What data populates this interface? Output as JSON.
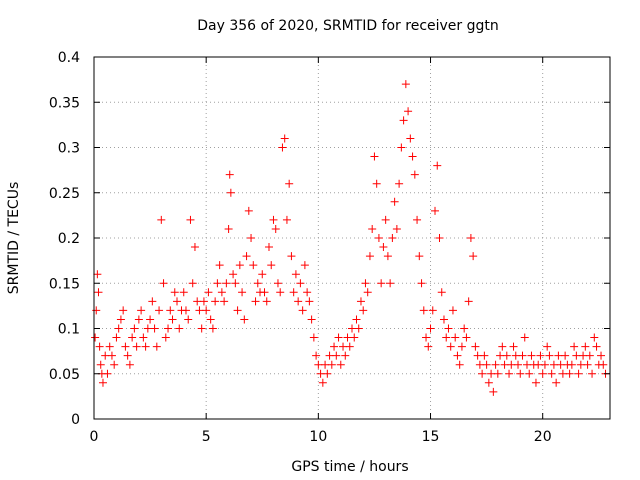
{
  "chart_data": {
    "type": "scatter",
    "title": "Day 356 of 2020, SRMTID for receiver ggtn",
    "xlabel": "GPS time / hours",
    "ylabel": "SRMTID / TECUs",
    "xlim": [
      0,
      23
    ],
    "ylim": [
      0,
      0.4
    ],
    "xticks": [
      0,
      5,
      10,
      15,
      20
    ],
    "yticks": [
      0,
      0.05,
      0.1,
      0.15,
      0.2,
      0.25,
      0.3,
      0.35,
      0.4
    ],
    "xtick_labels": [
      "0",
      "5",
      "10",
      "15",
      "20"
    ],
    "ytick_labels": [
      "0",
      "0.05",
      "0.1",
      "0.15",
      "0.2",
      "0.25",
      "0.3",
      "0.35",
      "0.4"
    ],
    "grid": true,
    "marker": "plus",
    "color": "#ff0000",
    "series": [
      {
        "name": "SRMTID",
        "points": [
          [
            0.05,
            0.09
          ],
          [
            0.1,
            0.12
          ],
          [
            0.15,
            0.16
          ],
          [
            0.2,
            0.14
          ],
          [
            0.25,
            0.08
          ],
          [
            0.3,
            0.06
          ],
          [
            0.35,
            0.05
          ],
          [
            0.4,
            0.04
          ],
          [
            0.5,
            0.07
          ],
          [
            0.6,
            0.05
          ],
          [
            0.7,
            0.08
          ],
          [
            0.8,
            0.07
          ],
          [
            0.9,
            0.06
          ],
          [
            1.0,
            0.09
          ],
          [
            1.1,
            0.1
          ],
          [
            1.2,
            0.11
          ],
          [
            1.3,
            0.12
          ],
          [
            1.4,
            0.08
          ],
          [
            1.5,
            0.07
          ],
          [
            1.6,
            0.06
          ],
          [
            1.7,
            0.09
          ],
          [
            1.8,
            0.1
          ],
          [
            1.9,
            0.08
          ],
          [
            2.0,
            0.11
          ],
          [
            2.1,
            0.12
          ],
          [
            2.2,
            0.09
          ],
          [
            2.3,
            0.08
          ],
          [
            2.4,
            0.1
          ],
          [
            2.5,
            0.11
          ],
          [
            2.6,
            0.13
          ],
          [
            2.7,
            0.1
          ],
          [
            2.8,
            0.08
          ],
          [
            2.9,
            0.12
          ],
          [
            3.0,
            0.22
          ],
          [
            3.1,
            0.15
          ],
          [
            3.2,
            0.09
          ],
          [
            3.3,
            0.1
          ],
          [
            3.4,
            0.12
          ],
          [
            3.5,
            0.11
          ],
          [
            3.6,
            0.14
          ],
          [
            3.7,
            0.13
          ],
          [
            3.8,
            0.1
          ],
          [
            3.9,
            0.12
          ],
          [
            4.0,
            0.14
          ],
          [
            4.1,
            0.12
          ],
          [
            4.2,
            0.11
          ],
          [
            4.3,
            0.22
          ],
          [
            4.4,
            0.15
          ],
          [
            4.5,
            0.19
          ],
          [
            4.6,
            0.13
          ],
          [
            4.7,
            0.12
          ],
          [
            4.8,
            0.1
          ],
          [
            4.9,
            0.13
          ],
          [
            5.0,
            0.12
          ],
          [
            5.1,
            0.14
          ],
          [
            5.2,
            0.11
          ],
          [
            5.3,
            0.1
          ],
          [
            5.4,
            0.13
          ],
          [
            5.5,
            0.15
          ],
          [
            5.6,
            0.17
          ],
          [
            5.7,
            0.14
          ],
          [
            5.8,
            0.13
          ],
          [
            5.9,
            0.15
          ],
          [
            6.0,
            0.21
          ],
          [
            6.05,
            0.27
          ],
          [
            6.1,
            0.25
          ],
          [
            6.2,
            0.16
          ],
          [
            6.3,
            0.15
          ],
          [
            6.4,
            0.12
          ],
          [
            6.5,
            0.17
          ],
          [
            6.6,
            0.14
          ],
          [
            6.7,
            0.11
          ],
          [
            6.8,
            0.18
          ],
          [
            6.9,
            0.23
          ],
          [
            7.0,
            0.2
          ],
          [
            7.1,
            0.17
          ],
          [
            7.2,
            0.13
          ],
          [
            7.3,
            0.15
          ],
          [
            7.4,
            0.14
          ],
          [
            7.5,
            0.16
          ],
          [
            7.6,
            0.14
          ],
          [
            7.7,
            0.13
          ],
          [
            7.8,
            0.19
          ],
          [
            7.9,
            0.17
          ],
          [
            8.0,
            0.22
          ],
          [
            8.1,
            0.21
          ],
          [
            8.2,
            0.15
          ],
          [
            8.3,
            0.14
          ],
          [
            8.4,
            0.3
          ],
          [
            8.5,
            0.31
          ],
          [
            8.6,
            0.22
          ],
          [
            8.7,
            0.26
          ],
          [
            8.8,
            0.18
          ],
          [
            8.9,
            0.14
          ],
          [
            9.0,
            0.16
          ],
          [
            9.1,
            0.13
          ],
          [
            9.2,
            0.15
          ],
          [
            9.3,
            0.12
          ],
          [
            9.4,
            0.17
          ],
          [
            9.5,
            0.14
          ],
          [
            9.6,
            0.13
          ],
          [
            9.7,
            0.11
          ],
          [
            9.8,
            0.09
          ],
          [
            9.9,
            0.07
          ],
          [
            10.0,
            0.06
          ],
          [
            10.1,
            0.05
          ],
          [
            10.2,
            0.04
          ],
          [
            10.3,
            0.06
          ],
          [
            10.4,
            0.05
          ],
          [
            10.5,
            0.07
          ],
          [
            10.6,
            0.06
          ],
          [
            10.7,
            0.08
          ],
          [
            10.8,
            0.07
          ],
          [
            10.9,
            0.09
          ],
          [
            11.0,
            0.06
          ],
          [
            11.1,
            0.08
          ],
          [
            11.2,
            0.07
          ],
          [
            11.3,
            0.09
          ],
          [
            11.4,
            0.08
          ],
          [
            11.5,
            0.1
          ],
          [
            11.6,
            0.09
          ],
          [
            11.7,
            0.11
          ],
          [
            11.8,
            0.1
          ],
          [
            11.9,
            0.13
          ],
          [
            12.0,
            0.12
          ],
          [
            12.1,
            0.15
          ],
          [
            12.2,
            0.14
          ],
          [
            12.3,
            0.18
          ],
          [
            12.4,
            0.21
          ],
          [
            12.5,
            0.29
          ],
          [
            12.6,
            0.26
          ],
          [
            12.7,
            0.2
          ],
          [
            12.8,
            0.15
          ],
          [
            12.9,
            0.19
          ],
          [
            13.0,
            0.22
          ],
          [
            13.1,
            0.18
          ],
          [
            13.2,
            0.15
          ],
          [
            13.3,
            0.2
          ],
          [
            13.4,
            0.24
          ],
          [
            13.5,
            0.21
          ],
          [
            13.6,
            0.26
          ],
          [
            13.7,
            0.3
          ],
          [
            13.8,
            0.33
          ],
          [
            13.9,
            0.37
          ],
          [
            14.0,
            0.34
          ],
          [
            14.1,
            0.31
          ],
          [
            14.2,
            0.29
          ],
          [
            14.3,
            0.27
          ],
          [
            14.4,
            0.22
          ],
          [
            14.5,
            0.18
          ],
          [
            14.6,
            0.15
          ],
          [
            14.7,
            0.12
          ],
          [
            14.8,
            0.09
          ],
          [
            14.9,
            0.08
          ],
          [
            15.0,
            0.1
          ],
          [
            15.1,
            0.12
          ],
          [
            15.2,
            0.23
          ],
          [
            15.3,
            0.28
          ],
          [
            15.4,
            0.2
          ],
          [
            15.5,
            0.14
          ],
          [
            15.6,
            0.11
          ],
          [
            15.7,
            0.09
          ],
          [
            15.8,
            0.1
          ],
          [
            15.9,
            0.08
          ],
          [
            16.0,
            0.12
          ],
          [
            16.1,
            0.09
          ],
          [
            16.2,
            0.07
          ],
          [
            16.3,
            0.06
          ],
          [
            16.4,
            0.08
          ],
          [
            16.5,
            0.1
          ],
          [
            16.6,
            0.09
          ],
          [
            16.7,
            0.13
          ],
          [
            16.8,
            0.2
          ],
          [
            16.9,
            0.18
          ],
          [
            17.0,
            0.08
          ],
          [
            17.1,
            0.07
          ],
          [
            17.2,
            0.06
          ],
          [
            17.3,
            0.05
          ],
          [
            17.4,
            0.07
          ],
          [
            17.5,
            0.06
          ],
          [
            17.6,
            0.04
          ],
          [
            17.7,
            0.05
          ],
          [
            17.8,
            0.03
          ],
          [
            17.9,
            0.06
          ],
          [
            18.0,
            0.05
          ],
          [
            18.1,
            0.07
          ],
          [
            18.2,
            0.08
          ],
          [
            18.3,
            0.06
          ],
          [
            18.4,
            0.07
          ],
          [
            18.5,
            0.05
          ],
          [
            18.6,
            0.06
          ],
          [
            18.7,
            0.08
          ],
          [
            18.8,
            0.07
          ],
          [
            18.9,
            0.06
          ],
          [
            19.0,
            0.05
          ],
          [
            19.1,
            0.07
          ],
          [
            19.2,
            0.09
          ],
          [
            19.3,
            0.06
          ],
          [
            19.4,
            0.05
          ],
          [
            19.5,
            0.07
          ],
          [
            19.6,
            0.06
          ],
          [
            19.7,
            0.04
          ],
          [
            19.8,
            0.06
          ],
          [
            19.9,
            0.07
          ],
          [
            20.0,
            0.05
          ],
          [
            20.1,
            0.06
          ],
          [
            20.2,
            0.08
          ],
          [
            20.3,
            0.07
          ],
          [
            20.4,
            0.05
          ],
          [
            20.5,
            0.06
          ],
          [
            20.6,
            0.04
          ],
          [
            20.7,
            0.07
          ],
          [
            20.8,
            0.06
          ],
          [
            20.9,
            0.05
          ],
          [
            21.0,
            0.07
          ],
          [
            21.1,
            0.06
          ],
          [
            21.2,
            0.05
          ],
          [
            21.3,
            0.06
          ],
          [
            21.4,
            0.08
          ],
          [
            21.5,
            0.07
          ],
          [
            21.6,
            0.05
          ],
          [
            21.7,
            0.06
          ],
          [
            21.8,
            0.07
          ],
          [
            21.9,
            0.08
          ],
          [
            22.0,
            0.06
          ],
          [
            22.1,
            0.07
          ],
          [
            22.2,
            0.05
          ],
          [
            22.3,
            0.09
          ],
          [
            22.4,
            0.08
          ],
          [
            22.5,
            0.06
          ],
          [
            22.6,
            0.07
          ],
          [
            22.7,
            0.06
          ],
          [
            22.8,
            0.05
          ]
        ]
      }
    ]
  }
}
